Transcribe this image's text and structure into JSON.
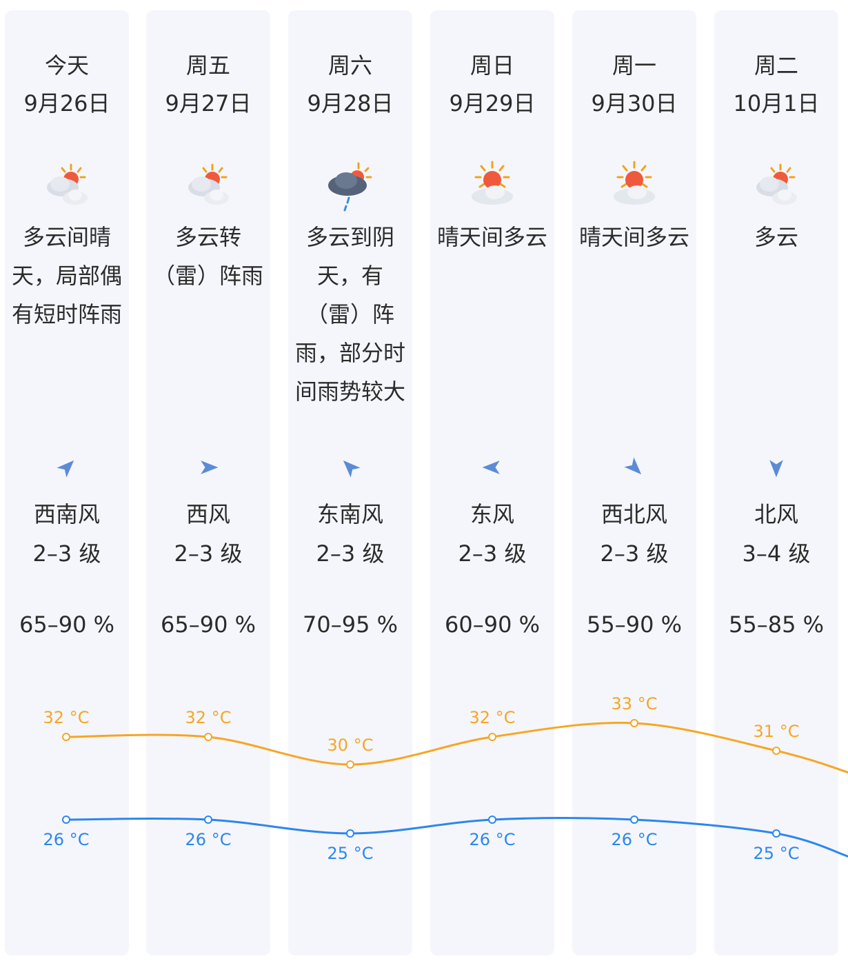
{
  "colors": {
    "high": "#f6a623",
    "low": "#2b86f0",
    "arrow": "#5b8bd6"
  },
  "days": [
    {
      "day": "今天",
      "date": "9月26日",
      "icon": "partly-cloudy-sun-icon",
      "desc": "多云间晴天，局部偶有短时阵雨",
      "wind_dir": "西南风",
      "wind_level": "2–3 级",
      "wind_arrow_rotation": 45,
      "humidity": "65–90 %",
      "high": "32 °C",
      "low": "26 °C"
    },
    {
      "day": "周五",
      "date": "9月27日",
      "icon": "partly-cloudy-sun-icon",
      "desc": "多云转（雷）阵雨",
      "wind_dir": "西风",
      "wind_level": "2–3 级",
      "wind_arrow_rotation": 90,
      "humidity": "65–90 %",
      "high": "32 °C",
      "low": "26 °C"
    },
    {
      "day": "周六",
      "date": "9月28日",
      "icon": "rain-cloud-icon",
      "desc": "多云到阴天，有（雷）阵雨，部分时间雨势较大",
      "wind_dir": "东南风",
      "wind_level": "2–3 级",
      "wind_arrow_rotation": -45,
      "humidity": "70–95 %",
      "high": "30 °C",
      "low": "25 °C"
    },
    {
      "day": "周日",
      "date": "9月29日",
      "icon": "sun-cloud-icon",
      "desc": "晴天间多云",
      "wind_dir": "东风",
      "wind_level": "2–3 级",
      "wind_arrow_rotation": -90,
      "humidity": "60–90 %",
      "high": "32 °C",
      "low": "26 °C"
    },
    {
      "day": "周一",
      "date": "9月30日",
      "icon": "sun-cloud-icon",
      "desc": "晴天间多云",
      "wind_dir": "西北风",
      "wind_level": "2–3 级",
      "wind_arrow_rotation": 135,
      "humidity": "55–90 %",
      "high": "33 °C",
      "low": "26 °C"
    },
    {
      "day": "周二",
      "date": "10月1日",
      "icon": "partly-cloudy-sun-icon",
      "desc": "多云",
      "wind_dir": "北风",
      "wind_level": "3–4 级",
      "wind_arrow_rotation": 180,
      "humidity": "55–85 %",
      "high": "31 °C",
      "low": "25 °C"
    }
  ],
  "chart_data": {
    "type": "line",
    "categories": [
      "9月26日",
      "9月27日",
      "9月28日",
      "9月29日",
      "9月30日",
      "10月1日"
    ],
    "series": [
      {
        "values": [
          32,
          32,
          30,
          32,
          33,
          31
        ]
      },
      {
        "values": [
          26,
          26,
          25,
          26,
          26,
          25
        ]
      }
    ],
    "unit": "°C"
  }
}
